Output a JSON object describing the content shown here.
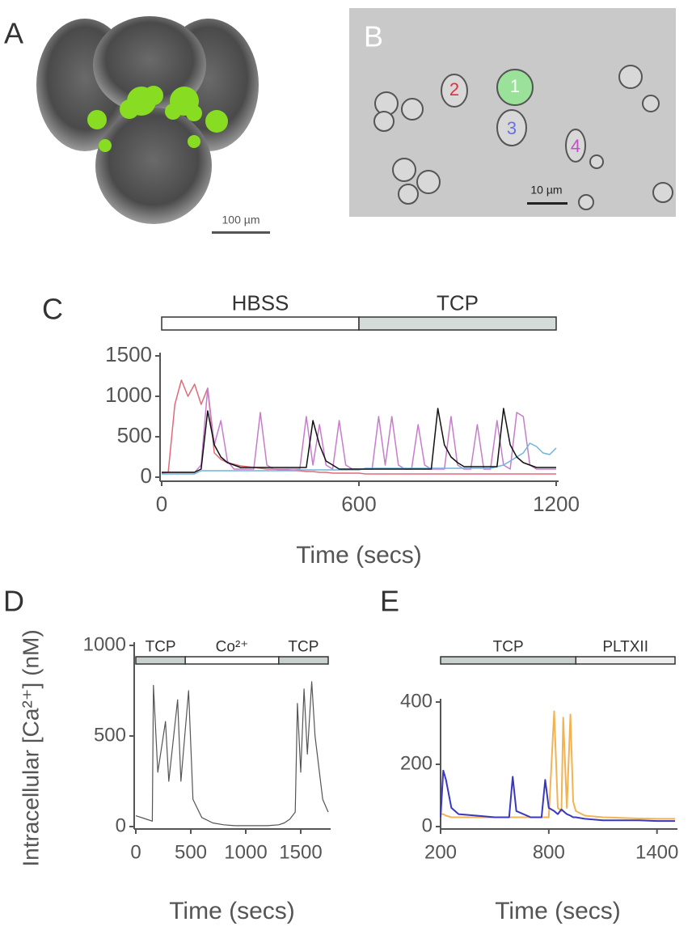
{
  "images": [
    {
      "panel": "A",
      "scale_bar": "100 µm"
    },
    {
      "panel": "B",
      "scale_bar": "10 µm",
      "cells": [
        "1",
        "2",
        "3",
        "4"
      ],
      "cell_colors": [
        "#ffffff",
        "#e03040",
        "#6a70e0",
        "#c050c8"
      ]
    }
  ],
  "chart_data": [
    {
      "type": "line",
      "panel": "C",
      "xlabel": "Time (secs)",
      "xlim": [
        0,
        1200
      ],
      "xticks": [
        0,
        600,
        1200
      ],
      "ylim": [
        0,
        1500
      ],
      "yticks": [
        0,
        500,
        1000,
        1500
      ],
      "treatments": [
        {
          "label": "HBSS",
          "start": 0,
          "end": 600,
          "color": "#ffffff"
        },
        {
          "label": "TCP",
          "start": 600,
          "end": 1200,
          "color": "#d5dbd9"
        }
      ],
      "x": [
        0,
        20,
        40,
        60,
        80,
        100,
        120,
        140,
        160,
        180,
        200,
        220,
        240,
        260,
        280,
        300,
        320,
        340,
        360,
        380,
        400,
        420,
        440,
        460,
        480,
        500,
        520,
        540,
        560,
        580,
        600,
        620,
        640,
        660,
        680,
        700,
        720,
        740,
        760,
        780,
        800,
        820,
        840,
        860,
        880,
        900,
        920,
        940,
        960,
        980,
        1000,
        1020,
        1040,
        1060,
        1080,
        1100,
        1120,
        1140,
        1160,
        1180,
        1200
      ],
      "series": [
        {
          "color": "#e06a78",
          "values": [
            50,
            60,
            900,
            1200,
            1000,
            1150,
            900,
            1100,
            300,
            220,
            180,
            160,
            140,
            130,
            120,
            110,
            100,
            100,
            90,
            90,
            80,
            80,
            70,
            70,
            60,
            60,
            50,
            50,
            50,
            50,
            50,
            40,
            40,
            40,
            40,
            40,
            40,
            40,
            40,
            40,
            40,
            40,
            40,
            40,
            40,
            40,
            40,
            40,
            40,
            40,
            40,
            40,
            40,
            40,
            40,
            40,
            40,
            40,
            40,
            40,
            40
          ]
        },
        {
          "color": "#c77ccc",
          "values": [
            60,
            60,
            60,
            60,
            60,
            60,
            150,
            1100,
            400,
            700,
            200,
            100,
            100,
            100,
            100,
            800,
            150,
            100,
            100,
            100,
            100,
            100,
            750,
            150,
            650,
            150,
            100,
            700,
            150,
            100,
            100,
            100,
            100,
            750,
            150,
            750,
            150,
            100,
            100,
            650,
            150,
            100,
            100,
            100,
            750,
            150,
            100,
            100,
            650,
            100,
            100,
            700,
            150,
            100,
            800,
            750,
            150,
            100,
            100,
            100,
            100
          ]
        },
        {
          "color": "#6fb4dc",
          "values": [
            40,
            40,
            40,
            40,
            40,
            40,
            80,
            80,
            80,
            80,
            80,
            80,
            80,
            80,
            80,
            80,
            80,
            80,
            80,
            80,
            80,
            90,
            90,
            90,
            90,
            90,
            90,
            90,
            90,
            90,
            90,
            110,
            110,
            110,
            110,
            110,
            110,
            110,
            110,
            110,
            110,
            110,
            110,
            110,
            110,
            110,
            110,
            110,
            110,
            110,
            110,
            130,
            150,
            200,
            250,
            300,
            420,
            380,
            300,
            280,
            360
          ]
        },
        {
          "color": "#111111",
          "values": [
            60,
            60,
            60,
            60,
            60,
            60,
            100,
            820,
            400,
            250,
            180,
            150,
            120,
            120,
            120,
            120,
            120,
            120,
            120,
            120,
            120,
            120,
            120,
            700,
            400,
            200,
            150,
            100,
            100,
            100,
            100,
            100,
            100,
            100,
            100,
            100,
            100,
            100,
            100,
            100,
            100,
            100,
            850,
            400,
            250,
            180,
            130,
            130,
            130,
            130,
            130,
            130,
            850,
            400,
            250,
            180,
            150,
            120,
            120,
            120,
            120
          ]
        }
      ]
    },
    {
      "type": "line",
      "panel": "D",
      "xlabel": "Time (secs)",
      "ylabel": "Intracellular [Ca²⁺] (nM)",
      "xlim": [
        0,
        1750
      ],
      "xticks": [
        0,
        500,
        1000,
        1500
      ],
      "ylim": [
        0,
        1000
      ],
      "yticks": [
        0,
        500,
        1000
      ],
      "treatments": [
        {
          "label": "TCP",
          "start": 0,
          "end": 450,
          "color": "#c8d0d0"
        },
        {
          "label": "Co²⁺",
          "start": 450,
          "end": 1300,
          "color": "#ffffff"
        },
        {
          "label": "TCP",
          "start": 1300,
          "end": 1750,
          "color": "#c8d0d0"
        }
      ],
      "x": [
        0,
        100,
        150,
        160,
        200,
        270,
        300,
        380,
        410,
        480,
        520,
        600,
        700,
        800,
        900,
        1000,
        1100,
        1200,
        1300,
        1350,
        1400,
        1450,
        1470,
        1500,
        1530,
        1560,
        1600,
        1630,
        1700,
        1750
      ],
      "series": [
        {
          "color": "#555555",
          "values": [
            60,
            40,
            30,
            780,
            300,
            580,
            250,
            700,
            250,
            750,
            150,
            50,
            20,
            10,
            5,
            5,
            5,
            5,
            10,
            20,
            40,
            80,
            680,
            300,
            760,
            400,
            800,
            500,
            150,
            80
          ]
        }
      ]
    },
    {
      "type": "line",
      "panel": "E",
      "xlabel": "Time (secs)",
      "xlim": [
        200,
        1500
      ],
      "xticks": [
        200,
        800,
        1400
      ],
      "ylim": [
        0,
        400
      ],
      "yticks": [
        0,
        200,
        400
      ],
      "treatments": [
        {
          "label": "TCP",
          "start": 200,
          "end": 950,
          "color": "#c8d0d0"
        },
        {
          "label": "PLTXII",
          "start": 950,
          "end": 1500,
          "color": "#eeeeee"
        }
      ],
      "x": [
        200,
        215,
        230,
        260,
        300,
        400,
        500,
        580,
        600,
        620,
        700,
        760,
        780,
        800,
        830,
        850,
        870,
        880,
        900,
        920,
        935,
        950,
        1000,
        1100,
        1200,
        1300,
        1400,
        1500
      ],
      "series": [
        {
          "color": "#f2b354",
          "values": [
            40,
            40,
            35,
            30,
            30,
            30,
            30,
            30,
            30,
            30,
            30,
            30,
            30,
            30,
            370,
            60,
            50,
            350,
            60,
            360,
            80,
            50,
            35,
            30,
            28,
            26,
            25,
            25
          ]
        },
        {
          "color": "#3838c0",
          "values": [
            30,
            180,
            150,
            60,
            40,
            35,
            30,
            30,
            160,
            50,
            30,
            30,
            150,
            60,
            50,
            40,
            55,
            50,
            40,
            35,
            30,
            30,
            25,
            20,
            20,
            20,
            18,
            18
          ]
        }
      ]
    }
  ]
}
